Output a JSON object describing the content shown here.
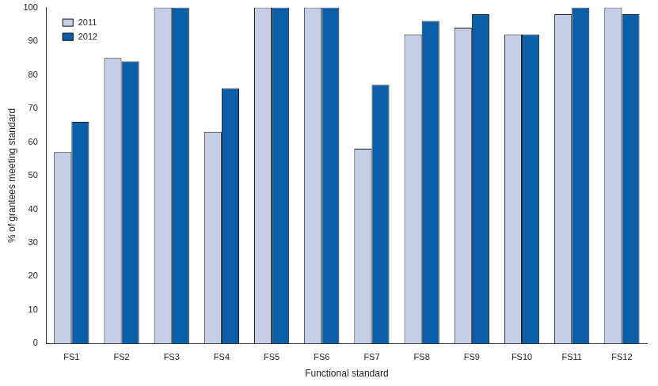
{
  "chart_data": {
    "type": "bar",
    "x_label": "Functional standard",
    "y_label": "% of grantees meeting standard",
    "categories": [
      "FS1",
      "FS2",
      "FS3",
      "FS4",
      "FS5",
      "FS6",
      "FS7",
      "FS8",
      "FS9",
      "FS10",
      "FS11",
      "FS12"
    ],
    "series": [
      {
        "name": "2011",
        "color": "#c6cde6",
        "values": [
          57,
          85,
          100,
          63,
          100,
          100,
          58,
          92,
          94,
          92,
          98,
          100
        ]
      },
      {
        "name": "2012",
        "color": "#0b5ea8",
        "values": [
          66,
          84,
          100,
          76,
          100,
          100,
          77,
          96,
          98,
          92,
          100,
          98
        ]
      }
    ],
    "ylim": [
      0,
      100
    ],
    "yticks": [
      0,
      10,
      20,
      30,
      40,
      50,
      60,
      70,
      80,
      90,
      100
    ],
    "grid": false,
    "legend": "upper left"
  }
}
